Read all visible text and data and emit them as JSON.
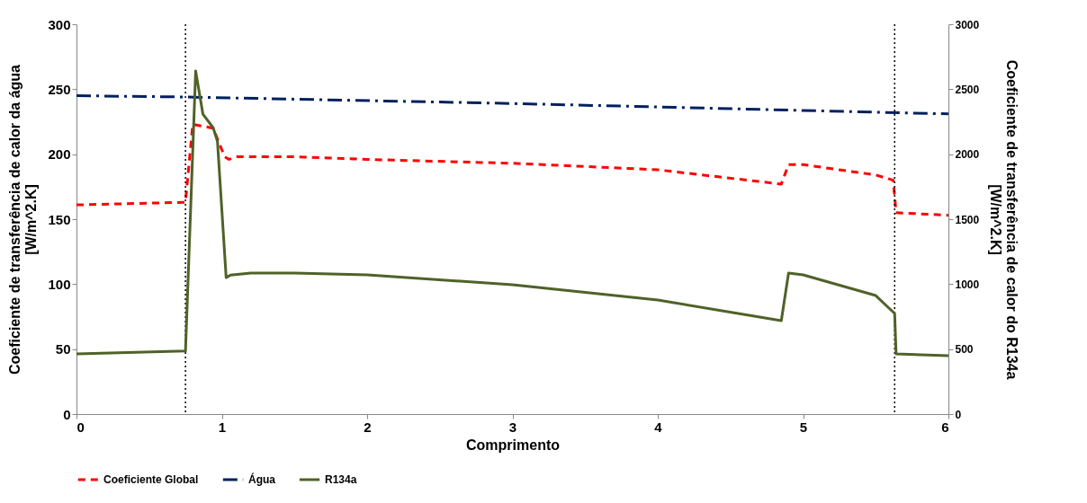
{
  "chart_data": {
    "type": "line",
    "xlabel": "Comprimento",
    "ylabel": "Coeficiente de transferência de calor da água\n[W/m^2.K]",
    "y2label": "Coeficiente de transferência de calor do R134a\n[W/m^2.K]",
    "xlim": [
      0,
      6
    ],
    "xticks": [
      0,
      1,
      2,
      3,
      4,
      5,
      6
    ],
    "ylim": [
      0,
      300
    ],
    "yticks": [
      0,
      50,
      100,
      150,
      200,
      250,
      300
    ],
    "y2lim": [
      0,
      3000
    ],
    "y2ticks": [
      0,
      500,
      1000,
      1500,
      2000,
      2500,
      3000
    ],
    "grid": false,
    "legend": "bottom",
    "ref_lines": [
      {
        "axis": "x",
        "value": 0.75,
        "line_style": "dotted",
        "color": "#000000"
      },
      {
        "axis": "x",
        "value": 5.63,
        "line_style": "dotted",
        "color": "#000000"
      }
    ],
    "series": [
      {
        "name": "Coeficiente Global",
        "color": "#ff0000",
        "line_style": "dashed",
        "x": [
          0,
          0.75,
          0.8,
          0.94,
          1.02,
          1.05,
          1.1,
          1.5,
          2,
          3,
          4,
          4.85,
          4.9,
          5,
          5.5,
          5.62,
          5.64,
          6
        ],
        "values": [
          161,
          163,
          223,
          220,
          198,
          196,
          198,
          198,
          196,
          193,
          188,
          177,
          192,
          192,
          184,
          180,
          155,
          153
        ]
      },
      {
        "name": "Água",
        "color": "#002060",
        "line_style": "dashdot",
        "x": [
          0,
          0.75,
          3,
          6
        ],
        "values": [
          245,
          244,
          239,
          231
        ]
      },
      {
        "name": "R134a",
        "color": "#4f6228",
        "line_style": "solid",
        "axis": "y2",
        "x": [
          0,
          0.75,
          0.82,
          0.87,
          0.94,
          0.97,
          1.03,
          1.06,
          1.2,
          1.5,
          2,
          3,
          4,
          4.85,
          4.9,
          5,
          5.5,
          5.63,
          5.64,
          6
        ],
        "values": [
          463,
          485,
          2640,
          2308,
          2205,
          2100,
          1050,
          1070,
          1085,
          1085,
          1071,
          995,
          878,
          719,
          1085,
          1071,
          912,
          774,
          463,
          449
        ]
      }
    ]
  }
}
